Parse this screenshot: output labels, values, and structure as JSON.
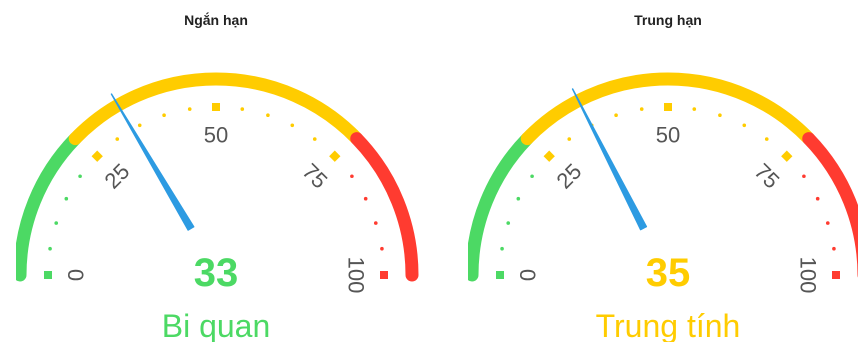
{
  "gauges": [
    {
      "title": "Ngắn hạn",
      "value": 33,
      "value_label": "33",
      "status": "Bi quan",
      "status_color": "#4cd964",
      "ticks": [
        "0",
        "25",
        "50",
        "75",
        "100"
      ]
    },
    {
      "title": "Trung hạn",
      "value": 35,
      "value_label": "35",
      "status": "Trung tính",
      "status_color": "#ffcc00",
      "ticks": [
        "0",
        "25",
        "50",
        "75",
        "100"
      ]
    }
  ],
  "colors": {
    "green": "#4cd964",
    "yellow": "#ffcc00",
    "red": "#ff3b30",
    "needle": "#2d9be2",
    "tick_text": "#555555"
  }
}
